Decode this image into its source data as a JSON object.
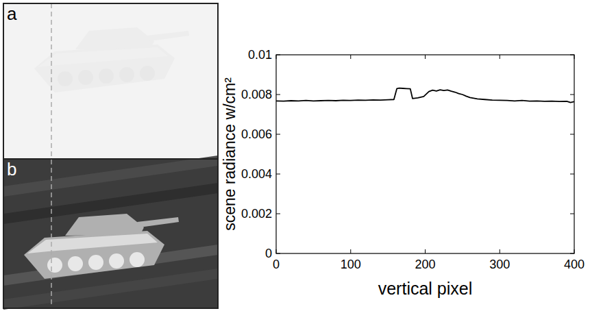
{
  "chart_data": {
    "type": "line",
    "annotations": [
      "a",
      "b"
    ],
    "xlabel": "vertical pixel",
    "ylabel": "scene radiance w/cm²",
    "xlim": [
      0,
      400
    ],
    "ylim": [
      0,
      0.01
    ],
    "xticks": [
      0,
      100,
      200,
      300,
      400
    ],
    "yticks": [
      0,
      0.002,
      0.004,
      0.006,
      0.008,
      0.01
    ],
    "grid": false,
    "x": [
      0,
      10,
      20,
      30,
      40,
      50,
      60,
      70,
      80,
      90,
      100,
      110,
      120,
      130,
      140,
      150,
      158,
      162,
      165,
      170,
      175,
      180,
      183,
      190,
      198,
      205,
      210,
      215,
      220,
      225,
      230,
      235,
      240,
      245,
      250,
      255,
      260,
      270,
      280,
      290,
      300,
      310,
      320,
      330,
      340,
      350,
      360,
      370,
      380,
      390,
      395,
      400
    ],
    "series": [
      {
        "color": "#000000",
        "line_style": "solid",
        "values": [
          0.00768,
          0.00767,
          0.00769,
          0.00768,
          0.0077,
          0.00768,
          0.00769,
          0.0077,
          0.00769,
          0.00771,
          0.0077,
          0.00772,
          0.00771,
          0.00773,
          0.00772,
          0.00774,
          0.00775,
          0.0083,
          0.00832,
          0.00831,
          0.0083,
          0.00829,
          0.0078,
          0.00783,
          0.0079,
          0.00815,
          0.00822,
          0.00818,
          0.00824,
          0.0082,
          0.00823,
          0.00817,
          0.00812,
          0.00805,
          0.008,
          0.00792,
          0.00785,
          0.00778,
          0.00775,
          0.00772,
          0.00771,
          0.0077,
          0.00768,
          0.0077,
          0.00767,
          0.00768,
          0.00766,
          0.00767,
          0.00765,
          0.00766,
          0.0076,
          0.00764
        ]
      }
    ]
  }
}
